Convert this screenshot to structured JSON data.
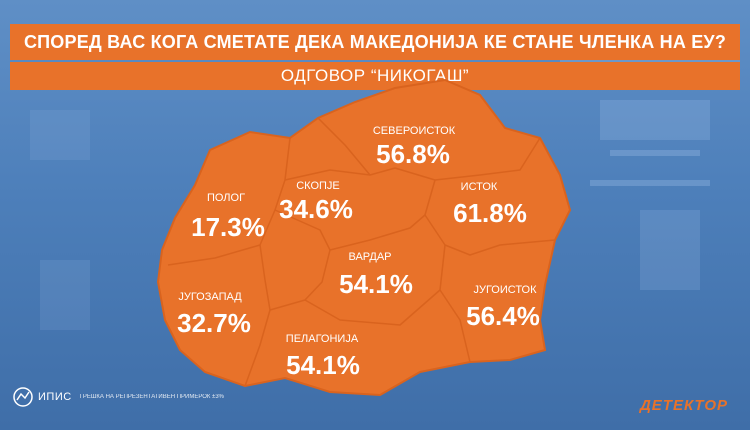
{
  "header": {
    "title": "СПОРЕД ВАС КОГА СМЕТАТЕ ДЕКА МАКЕДОНИЈА КЕ СТАНЕ ЧЛЕНКА НА ЕУ?",
    "subtitle": "ОДГОВОР “НИКОГАШ”"
  },
  "map": {
    "fill_color": "#e8722a",
    "border_color": "#d9631e",
    "regions": [
      {
        "id": "polog",
        "name": "ПОЛОГ",
        "value": "17.3%"
      },
      {
        "id": "skopje",
        "name": "СКОПЈЕ",
        "value": "34.6%"
      },
      {
        "id": "severoistok",
        "name": "СЕВЕРОИСТОК",
        "value": "56.8%"
      },
      {
        "id": "istok",
        "name": "ИСТОК",
        "value": "61.8%"
      },
      {
        "id": "vardar",
        "name": "ВАРДАР",
        "value": "54.1%"
      },
      {
        "id": "jugozapad",
        "name": "ЈУГОЗАПАД",
        "value": "32.7%"
      },
      {
        "id": "jugoistok",
        "name": "ЈУГОИСТОК",
        "value": "56.4%"
      },
      {
        "id": "pelagonija",
        "name": "ПЕЛАГОНИЈА",
        "value": "54.1%"
      }
    ]
  },
  "footer": {
    "org": "ИПИС",
    "sample_note": "ГРЕШКА НА РЕПРЕЗЕНТАТИВЕН ПРИМЕРОК ±3%",
    "brand": "ДЕТЕКТОР"
  }
}
